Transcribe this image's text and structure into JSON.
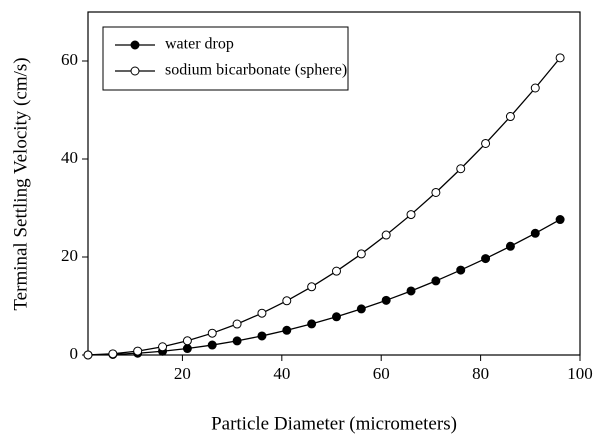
{
  "chart_data": {
    "type": "line",
    "xlabel": "Particle Diameter (micrometers)",
    "ylabel": "Terminal Settling Velocity (cm/s)",
    "x": [
      1,
      6,
      11,
      16,
      21,
      26,
      31,
      36,
      41,
      46,
      51,
      56,
      61,
      66,
      71,
      76,
      81,
      86,
      91,
      96
    ],
    "series": [
      {
        "name": "water drop",
        "color": "#000000",
        "marker": "filled",
        "values": [
          0.0,
          0.11,
          0.36,
          0.77,
          1.32,
          2.03,
          2.88,
          3.89,
          5.04,
          6.35,
          7.8,
          9.41,
          11.16,
          13.07,
          15.12,
          17.33,
          19.68,
          22.19,
          24.84,
          27.65
        ]
      },
      {
        "name": "sodium bicarbonate (sphere)",
        "color": "#000000",
        "marker": "open",
        "values": [
          0.01,
          0.24,
          0.8,
          1.68,
          2.9,
          4.45,
          6.32,
          8.53,
          11.06,
          13.92,
          17.11,
          20.63,
          24.48,
          28.66,
          33.17,
          38.01,
          43.17,
          48.67,
          54.49,
          60.64
        ]
      }
    ],
    "xlim": [
      1,
      100
    ],
    "xticks": [
      20,
      40,
      60,
      80,
      100
    ],
    "ylim": [
      0,
      70
    ],
    "yticks": [
      0,
      20,
      40,
      60
    ],
    "legend": "upper left"
  }
}
